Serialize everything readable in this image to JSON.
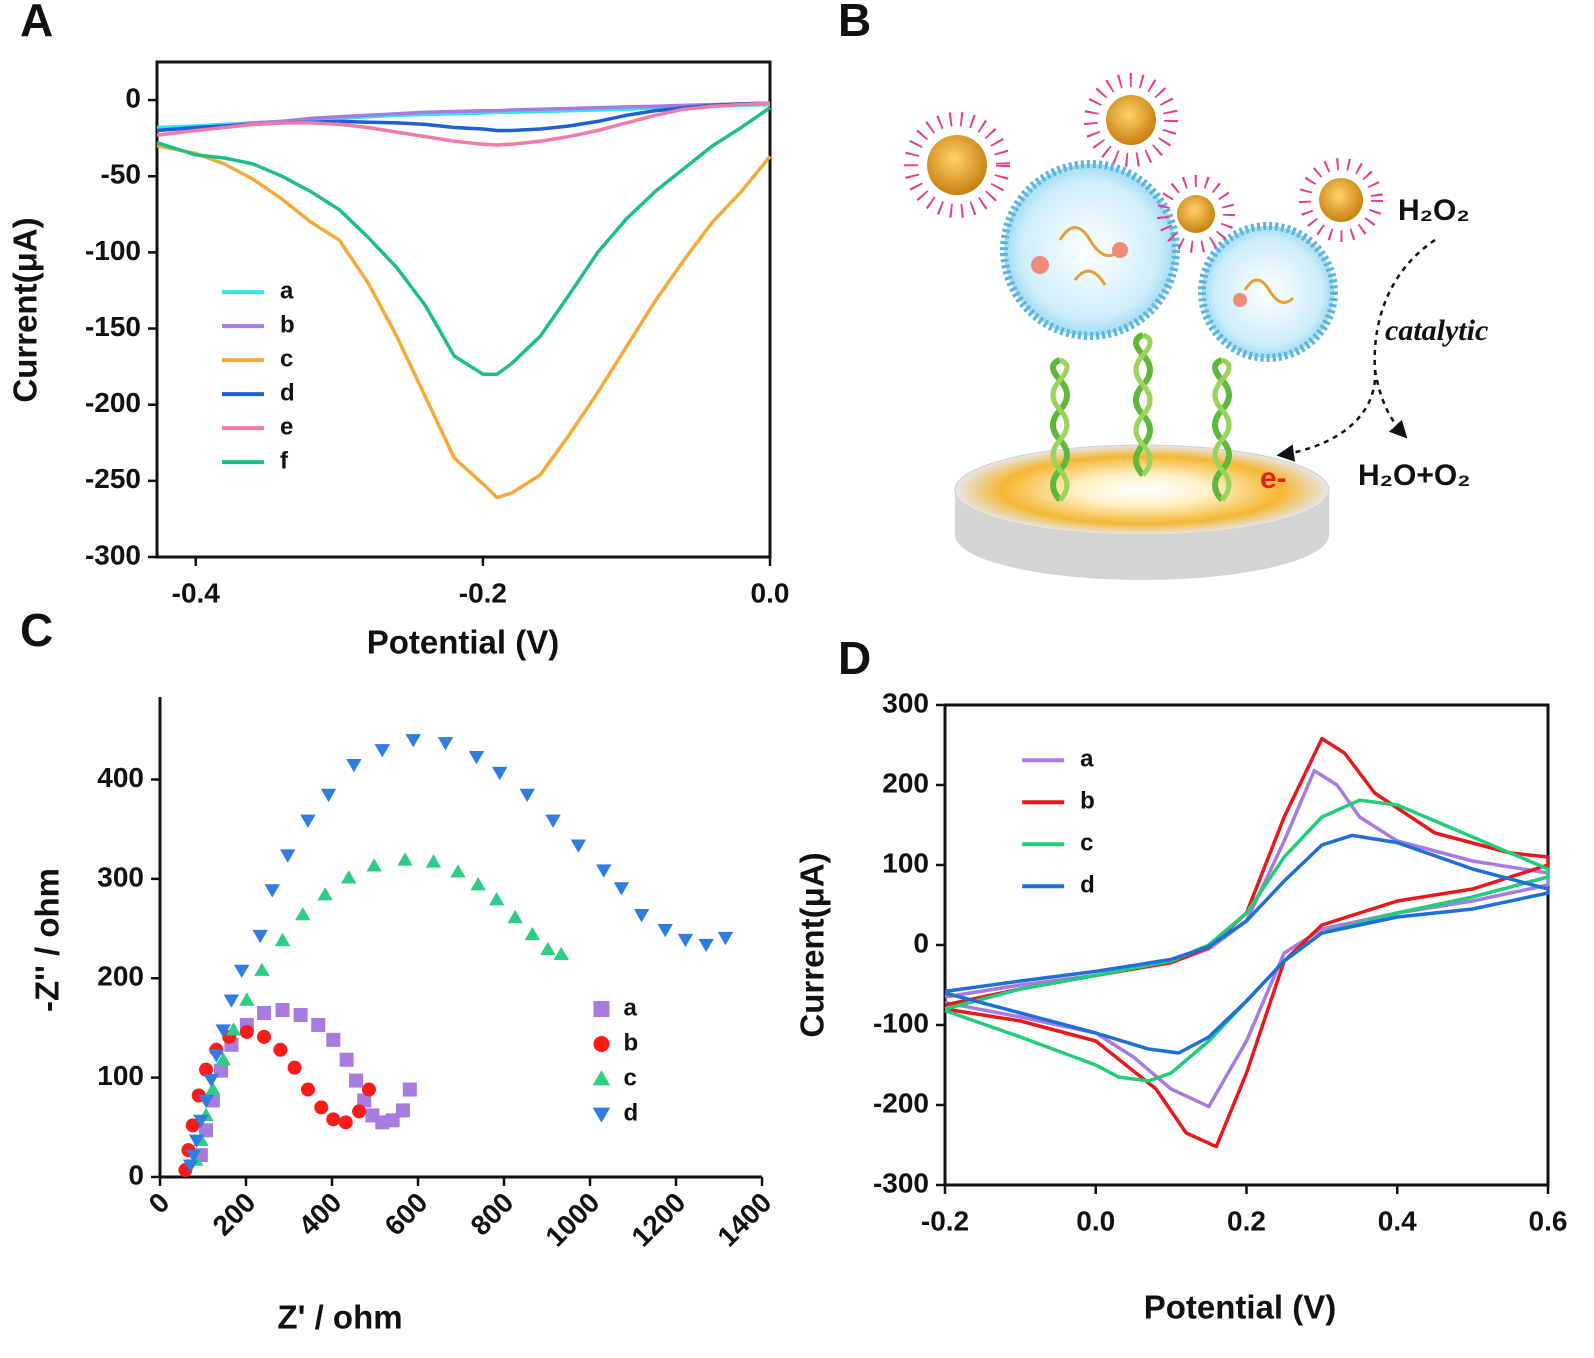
{
  "chart_data": [
    {
      "panel": "A",
      "type": "line",
      "x_label": "Potential (V)",
      "y_label": "Current(μA)",
      "xlim": [
        -0.427,
        0
      ],
      "ylim": [
        -300,
        25
      ],
      "xticks": [
        -0.4,
        -0.2,
        {
          "value": 0,
          "label": "0.0"
        }
      ],
      "yticks": [
        -300,
        -250,
        -200,
        -150,
        -100,
        -50,
        0
      ],
      "legend": "center left",
      "x": [
        -0.427,
        -0.4,
        -0.38,
        -0.36,
        -0.34,
        -0.32,
        -0.3,
        -0.28,
        -0.26,
        -0.24,
        -0.22,
        -0.2,
        -0.19,
        -0.18,
        -0.16,
        -0.14,
        -0.12,
        -0.1,
        -0.08,
        -0.06,
        -0.04,
        -0.02,
        0
      ],
      "series": [
        {
          "name": "a",
          "color": "#2fe6f0",
          "values": [
            -18,
            -17,
            -16,
            -15,
            -14,
            -13,
            -12,
            -11,
            -10,
            -9.5,
            -9,
            -8.5,
            -8,
            -8,
            -7.5,
            -7,
            -6.5,
            -6,
            -5,
            -4.5,
            -4,
            -3.5,
            -3
          ]
        },
        {
          "name": "b",
          "color": "#a77be0",
          "values": [
            -20,
            -18,
            -17,
            -15,
            -14,
            -12,
            -11,
            -10,
            -9,
            -8,
            -7.5,
            -7,
            -7,
            -6.5,
            -6,
            -5.5,
            -5,
            -4.5,
            -4,
            -3.5,
            -3,
            -2.5,
            -2
          ]
        },
        {
          "name": "c",
          "color": "#f5a936",
          "values": [
            -30,
            -35,
            -42,
            -52,
            -65,
            -80,
            -92,
            -120,
            -155,
            -195,
            -235,
            -252,
            -261,
            -258,
            -246,
            -220,
            -192,
            -162,
            -132,
            -105,
            -80,
            -60,
            -37
          ]
        },
        {
          "name": "d",
          "color": "#1f5fd6",
          "values": [
            -20,
            -18,
            -17,
            -16,
            -15,
            -14.5,
            -14,
            -14.5,
            -15,
            -16,
            -18,
            -19,
            -20,
            -20,
            -19,
            -17,
            -14,
            -10,
            -7,
            -5,
            -3.5,
            -2.5,
            -2
          ]
        },
        {
          "name": "e",
          "color": "#f07aa8",
          "values": [
            -23,
            -20,
            -18,
            -16,
            -15,
            -15,
            -16,
            -18,
            -21,
            -24,
            -27,
            -29,
            -29.5,
            -29,
            -27,
            -24,
            -20,
            -15,
            -10,
            -6,
            -4,
            -3,
            -2
          ]
        },
        {
          "name": "f",
          "color": "#1dbf86",
          "values": [
            -28,
            -36,
            -38,
            -42,
            -50,
            -60,
            -72,
            -90,
            -110,
            -135,
            -168,
            -180,
            -180,
            -173,
            -155,
            -128,
            -100,
            -78,
            -60,
            -45,
            -30,
            -18,
            -5
          ]
        }
      ]
    },
    {
      "panel": "C",
      "type": "scatter",
      "x_label": "Z' / ohm",
      "y_label": "-Z'' / ohm",
      "xlim": [
        0,
        1400
      ],
      "ylim": [
        0,
        483
      ],
      "xticks": [
        0,
        200,
        400,
        600,
        800,
        1000,
        1200,
        1400
      ],
      "yticks": [
        0,
        100,
        200,
        300,
        400
      ],
      "legend": "lower right",
      "series": [
        {
          "name": "a",
          "color": "#a77be0",
          "marker": "square",
          "x": [
            95,
            107,
            123,
            142,
            166,
            202,
            242,
            285,
            327,
            368,
            403,
            434,
            456,
            475,
            494,
            517,
            541,
            565,
            581
          ],
          "values": [
            22,
            47,
            77,
            107,
            133,
            153,
            165,
            168,
            163,
            153,
            138,
            118,
            97,
            77,
            62,
            55,
            57,
            67,
            88
          ]
        },
        {
          "name": "b",
          "color": "#ff1a1a",
          "marker": "circle",
          "x": [
            59,
            66,
            76,
            90,
            107,
            131,
            161,
            202,
            242,
            280,
            313,
            344,
            375,
            403,
            432,
            463,
            486
          ],
          "values": [
            7,
            27,
            52,
            82,
            108,
            128,
            141,
            146,
            141,
            128,
            110,
            88,
            70,
            58,
            55,
            66,
            88
          ]
        },
        {
          "name": "c",
          "color": "#2ecc85",
          "marker": "triangle-up",
          "x": [
            83,
            95,
            107,
            123,
            147,
            171,
            202,
            237,
            285,
            332,
            384,
            439,
            498,
            570,
            636,
            693,
            740,
            783,
            826,
            866,
            902,
            933
          ],
          "values": [
            17,
            37,
            62,
            88,
            118,
            148,
            178,
            208,
            238,
            264,
            284,
            301,
            313,
            319,
            317,
            307,
            294,
            279,
            261,
            244,
            229,
            224
          ]
        },
        {
          "name": "d",
          "color": "#2f7de1",
          "marker": "triangle-down",
          "x": [
            71,
            78,
            85,
            95,
            107,
            119,
            131,
            147,
            166,
            190,
            233,
            261,
            297,
            344,
            392,
            451,
            517,
            589,
            664,
            736,
            790,
            854,
            914,
            973,
            1032,
            1073,
            1120,
            1175,
            1222,
            1270,
            1315
          ],
          "values": [
            12,
            22,
            37,
            57,
            77,
            98,
            123,
            148,
            178,
            208,
            243,
            289,
            324,
            359,
            385,
            415,
            430,
            440,
            437,
            423,
            407,
            385,
            359,
            334,
            309,
            291,
            264,
            249,
            239,
            234,
            241
          ]
        }
      ]
    },
    {
      "panel": "D",
      "type": "line",
      "x_label": "Potential (V)",
      "y_label": "Current(μA)",
      "xlim": [
        -0.2,
        0.6
      ],
      "ylim": [
        -300,
        300
      ],
      "xticks": [
        -0.2,
        {
          "value": 0,
          "label": "0.0"
        },
        0.2,
        0.4,
        0.6
      ],
      "yticks": [
        -300,
        -200,
        -100,
        0,
        100,
        200,
        300
      ],
      "legend": "upper left",
      "series": [
        {
          "name": "a",
          "color": "#a77be0",
          "x": [
            -0.2,
            -0.1,
            0,
            0.1,
            0.15,
            0.2,
            0.25,
            0.29,
            0.32,
            0.35,
            0.4,
            0.5,
            0.6,
            0.6,
            0.5,
            0.4,
            0.3,
            0.25,
            0.2,
            0.15,
            0.1,
            0.05,
            0,
            -0.1,
            -0.2
          ],
          "values": [
            -65,
            -50,
            -38,
            -22,
            -5,
            30,
            130,
            218,
            200,
            160,
            130,
            105,
            90,
            75,
            55,
            40,
            20,
            -10,
            -120,
            -202,
            -180,
            -140,
            -110,
            -90,
            -72
          ]
        },
        {
          "name": "b",
          "color": "#e8181c",
          "x": [
            -0.2,
            -0.1,
            0,
            0.1,
            0.15,
            0.2,
            0.25,
            0.3,
            0.33,
            0.37,
            0.45,
            0.55,
            0.6,
            0.6,
            0.5,
            0.4,
            0.3,
            0.25,
            0.2,
            0.16,
            0.12,
            0.08,
            0,
            -0.1,
            -0.2
          ],
          "values": [
            -75,
            -55,
            -38,
            -22,
            -3,
            40,
            160,
            258,
            240,
            190,
            140,
            115,
            110,
            100,
            70,
            55,
            25,
            -20,
            -160,
            -252,
            -235,
            -180,
            -120,
            -95,
            -80
          ]
        },
        {
          "name": "c",
          "color": "#22cc7a",
          "x": [
            -0.2,
            -0.1,
            0,
            0.1,
            0.15,
            0.2,
            0.25,
            0.3,
            0.35,
            0.4,
            0.5,
            0.6,
            0.6,
            0.5,
            0.4,
            0.3,
            0.25,
            0.2,
            0.15,
            0.1,
            0.07,
            0.03,
            0,
            -0.1,
            -0.2
          ],
          "values": [
            -80,
            -55,
            -38,
            -20,
            0,
            40,
            110,
            160,
            181,
            175,
            135,
            95,
            85,
            60,
            40,
            15,
            -20,
            -70,
            -120,
            -160,
            -170,
            -165,
            -150,
            -115,
            -82
          ]
        },
        {
          "name": "d",
          "color": "#1f6fd8",
          "x": [
            -0.2,
            -0.1,
            0,
            0.1,
            0.15,
            0.2,
            0.25,
            0.3,
            0.34,
            0.4,
            0.5,
            0.6,
            0.6,
            0.5,
            0.4,
            0.3,
            0.25,
            0.2,
            0.15,
            0.11,
            0.07,
            0,
            -0.1,
            -0.2
          ],
          "values": [
            -58,
            -45,
            -33,
            -18,
            -2,
            30,
            80,
            125,
            137,
            128,
            95,
            70,
            65,
            45,
            35,
            15,
            -20,
            -70,
            -115,
            -135,
            -130,
            -110,
            -85,
            -60
          ]
        }
      ]
    }
  ],
  "diagram": {
    "panel": "B",
    "labels": [
      "H₂O₂",
      "catalytic",
      "e-",
      "H₂O+O₂"
    ]
  }
}
